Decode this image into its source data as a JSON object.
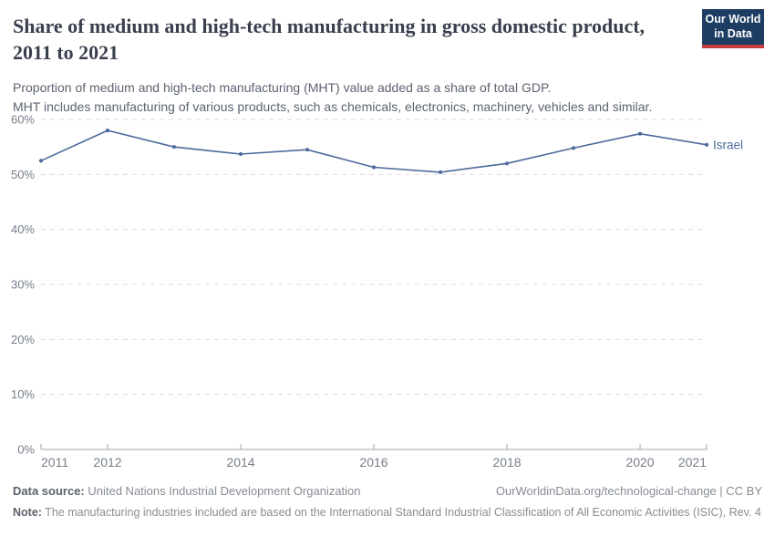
{
  "header": {
    "title": "Share of medium and high-tech manufacturing in gross domestic product, 2011 to 2021",
    "subtitle_line1": "Proportion of medium and high-tech manufacturing (MHT) value added as a share of total GDP.",
    "subtitle_line2": "MHT includes manufacturing of various products, such as chemicals, electronics, machinery, vehicles and similar.",
    "logo": {
      "line1": "Our World",
      "line2": "in Data",
      "bg_color": "#1d3d63",
      "bar_color": "#c83c3c"
    }
  },
  "chart_data": {
    "type": "line",
    "title": "Share of medium and high-tech manufacturing in gross domestic product, 2011 to 2021",
    "x": [
      2011,
      2012,
      2013,
      2014,
      2015,
      2016,
      2017,
      2018,
      2019,
      2020,
      2021
    ],
    "series": [
      {
        "name": "Israel",
        "color": "#4c6a9c",
        "values": [
          52.5,
          58.0,
          55.0,
          53.7,
          54.5,
          51.3,
          50.4,
          52.0,
          54.8,
          57.4,
          55.4
        ]
      }
    ],
    "xlim": [
      2011,
      2021
    ],
    "ylim": [
      0,
      60
    ],
    "x_tick_labels": [
      2011,
      2012,
      2014,
      2016,
      2018,
      2020,
      2021
    ],
    "y_ticks": [
      0,
      10,
      20,
      30,
      40,
      50,
      60
    ],
    "y_tick_suffix": "%",
    "grid": "horizontal-dashed",
    "legend": "inline-end-label",
    "grid_color": "#d9d9d9",
    "axis_color": "#a5a5a5",
    "tick_label_color": "#767e89"
  },
  "footer": {
    "datasource_label": "Data source:",
    "datasource_value": " United Nations Industrial Development Organization",
    "link_text": "OurWorldinData.org/technological-change | CC BY",
    "note_label": "Note:",
    "note_value": " The manufacturing industries included are based on the International Standard Industrial Classification of All Economic Activities (ISIC), Rev. 4"
  }
}
